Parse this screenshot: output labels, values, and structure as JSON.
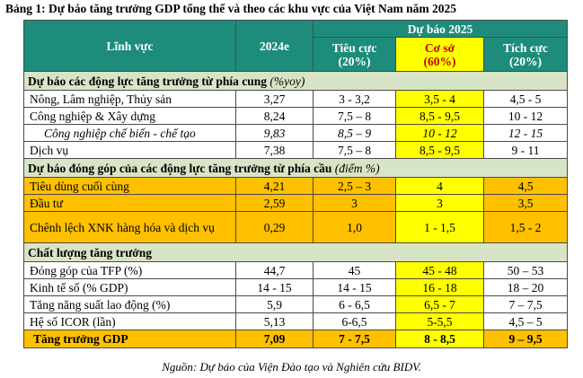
{
  "title": "Bảng 1: Dự báo tăng trưởng GDP tổng thể và theo các khu vực của Việt Nam năm 2025",
  "header": {
    "col_field": "Lĩnh vực",
    "col_2024": "2024e",
    "group_2025": "Dự báo 2025",
    "negative": "Tiêu cực",
    "negative_pct": "(20%)",
    "base": "Cơ sở",
    "base_pct": "(60%)",
    "positive": "Tích cực",
    "positive_pct": "(20%)"
  },
  "sections": {
    "supply": {
      "title": "Dự báo các động lực tăng trưởng từ phía cung",
      "unit": "(%yoy)"
    },
    "demand": {
      "title": "Dự báo đóng góp của các động lực tăng trưởng từ phía cầu",
      "unit": "(điểm %)"
    },
    "quality": {
      "title": "Chất lượng tăng trưởng"
    }
  },
  "rows": {
    "agri": [
      "Nông, Lâm nghiệp, Thủy sản",
      "3,27",
      "3 - 3,2",
      "3,5 - 4",
      "4,5 - 5"
    ],
    "industry": [
      "Công nghiệp & Xây dựng",
      "8,24",
      "7,5 – 8",
      "8,5 - 9,5",
      "10 - 12"
    ],
    "manufacturing": [
      "Công nghiệp chế biến - chế tạo",
      "9,83",
      "8,5 – 9",
      "10 - 12",
      "12 - 15"
    ],
    "services": [
      "Dịch vụ",
      "7,38",
      "7,5 – 8",
      "8,5 - 9,5",
      "9 - 11"
    ],
    "consumption": [
      "Tiêu dùng cuối cùng",
      "4,21",
      "2,5 – 3",
      "4",
      "4,5"
    ],
    "investment": [
      "Đầu tư",
      "2,59",
      "3",
      "3",
      "3,5"
    ],
    "net_export": [
      "Chênh lệch XNK hàng hóa và dịch vụ",
      "0,29",
      "1,0",
      "1 - 1,5",
      "1,5 - 2"
    ],
    "tfp": [
      "Đóng góp của TFP (%)",
      "44,7",
      "45",
      "45 - 48",
      "50 – 53"
    ],
    "digital": [
      "Kinh tế số (% GDP)",
      "14 - 15",
      "14 - 15",
      "16 - 18",
      "18 – 20"
    ],
    "labor": [
      "Tăng năng suất lao động (%)",
      "5,9",
      "6 - 6,5",
      "6,5 - 7",
      "7 – 7,5"
    ],
    "icor": [
      "Hệ số ICOR (lần)",
      "5,13",
      "6-6,5",
      "5-5,5",
      "4,5 – 5"
    ],
    "gdp": [
      "Tăng trưởng GDP",
      "7,09",
      "7 - 7,5",
      "8 - 8,5",
      "9 – 9,5"
    ]
  },
  "footer": "Nguồn: Dự báo của Viện Đào tạo và Nghiên cứu BIDV.",
  "colors": {
    "header_teal": "#1e8c7b",
    "section_green": "#d8e4c6",
    "highlight_yellow": "#ffff00",
    "highlight_orange": "#ffc000",
    "base_red": "#c00000"
  }
}
